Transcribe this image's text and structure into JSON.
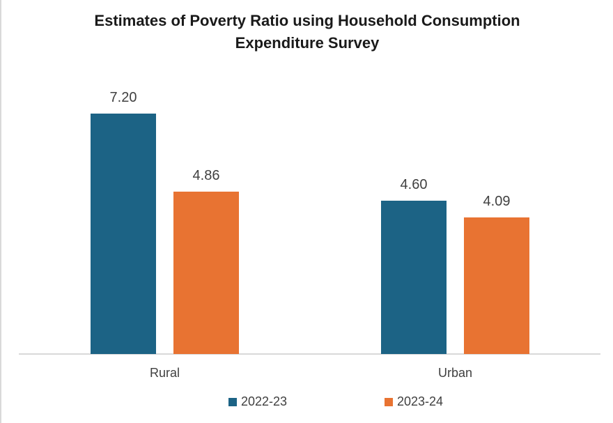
{
  "chart": {
    "title": "Estimates of Poverty Ratio using Household Consumption Expenditure Survey"
  },
  "chart_data": {
    "type": "bar",
    "title": "Estimates of Poverty Ratio using Household Consumption Expenditure Survey",
    "categories": [
      "Rural",
      "Urban"
    ],
    "series": [
      {
        "name": "2022-23",
        "color": "#1c6385",
        "values": [
          7.2,
          4.6
        ],
        "labels": [
          "7.20",
          "4.60"
        ]
      },
      {
        "name": "2023-24",
        "color": "#e87332",
        "values": [
          4.86,
          4.09
        ],
        "labels": [
          "4.86",
          "4.09"
        ]
      }
    ],
    "xlabel": "",
    "ylabel": "",
    "ylim": [
      0,
      7.5
    ],
    "grid": false,
    "legend_position": "bottom",
    "data_labels": true,
    "axis_line_color": "#d9d9d9",
    "label_color": "#404040",
    "title_color": "#1a1a1a"
  }
}
